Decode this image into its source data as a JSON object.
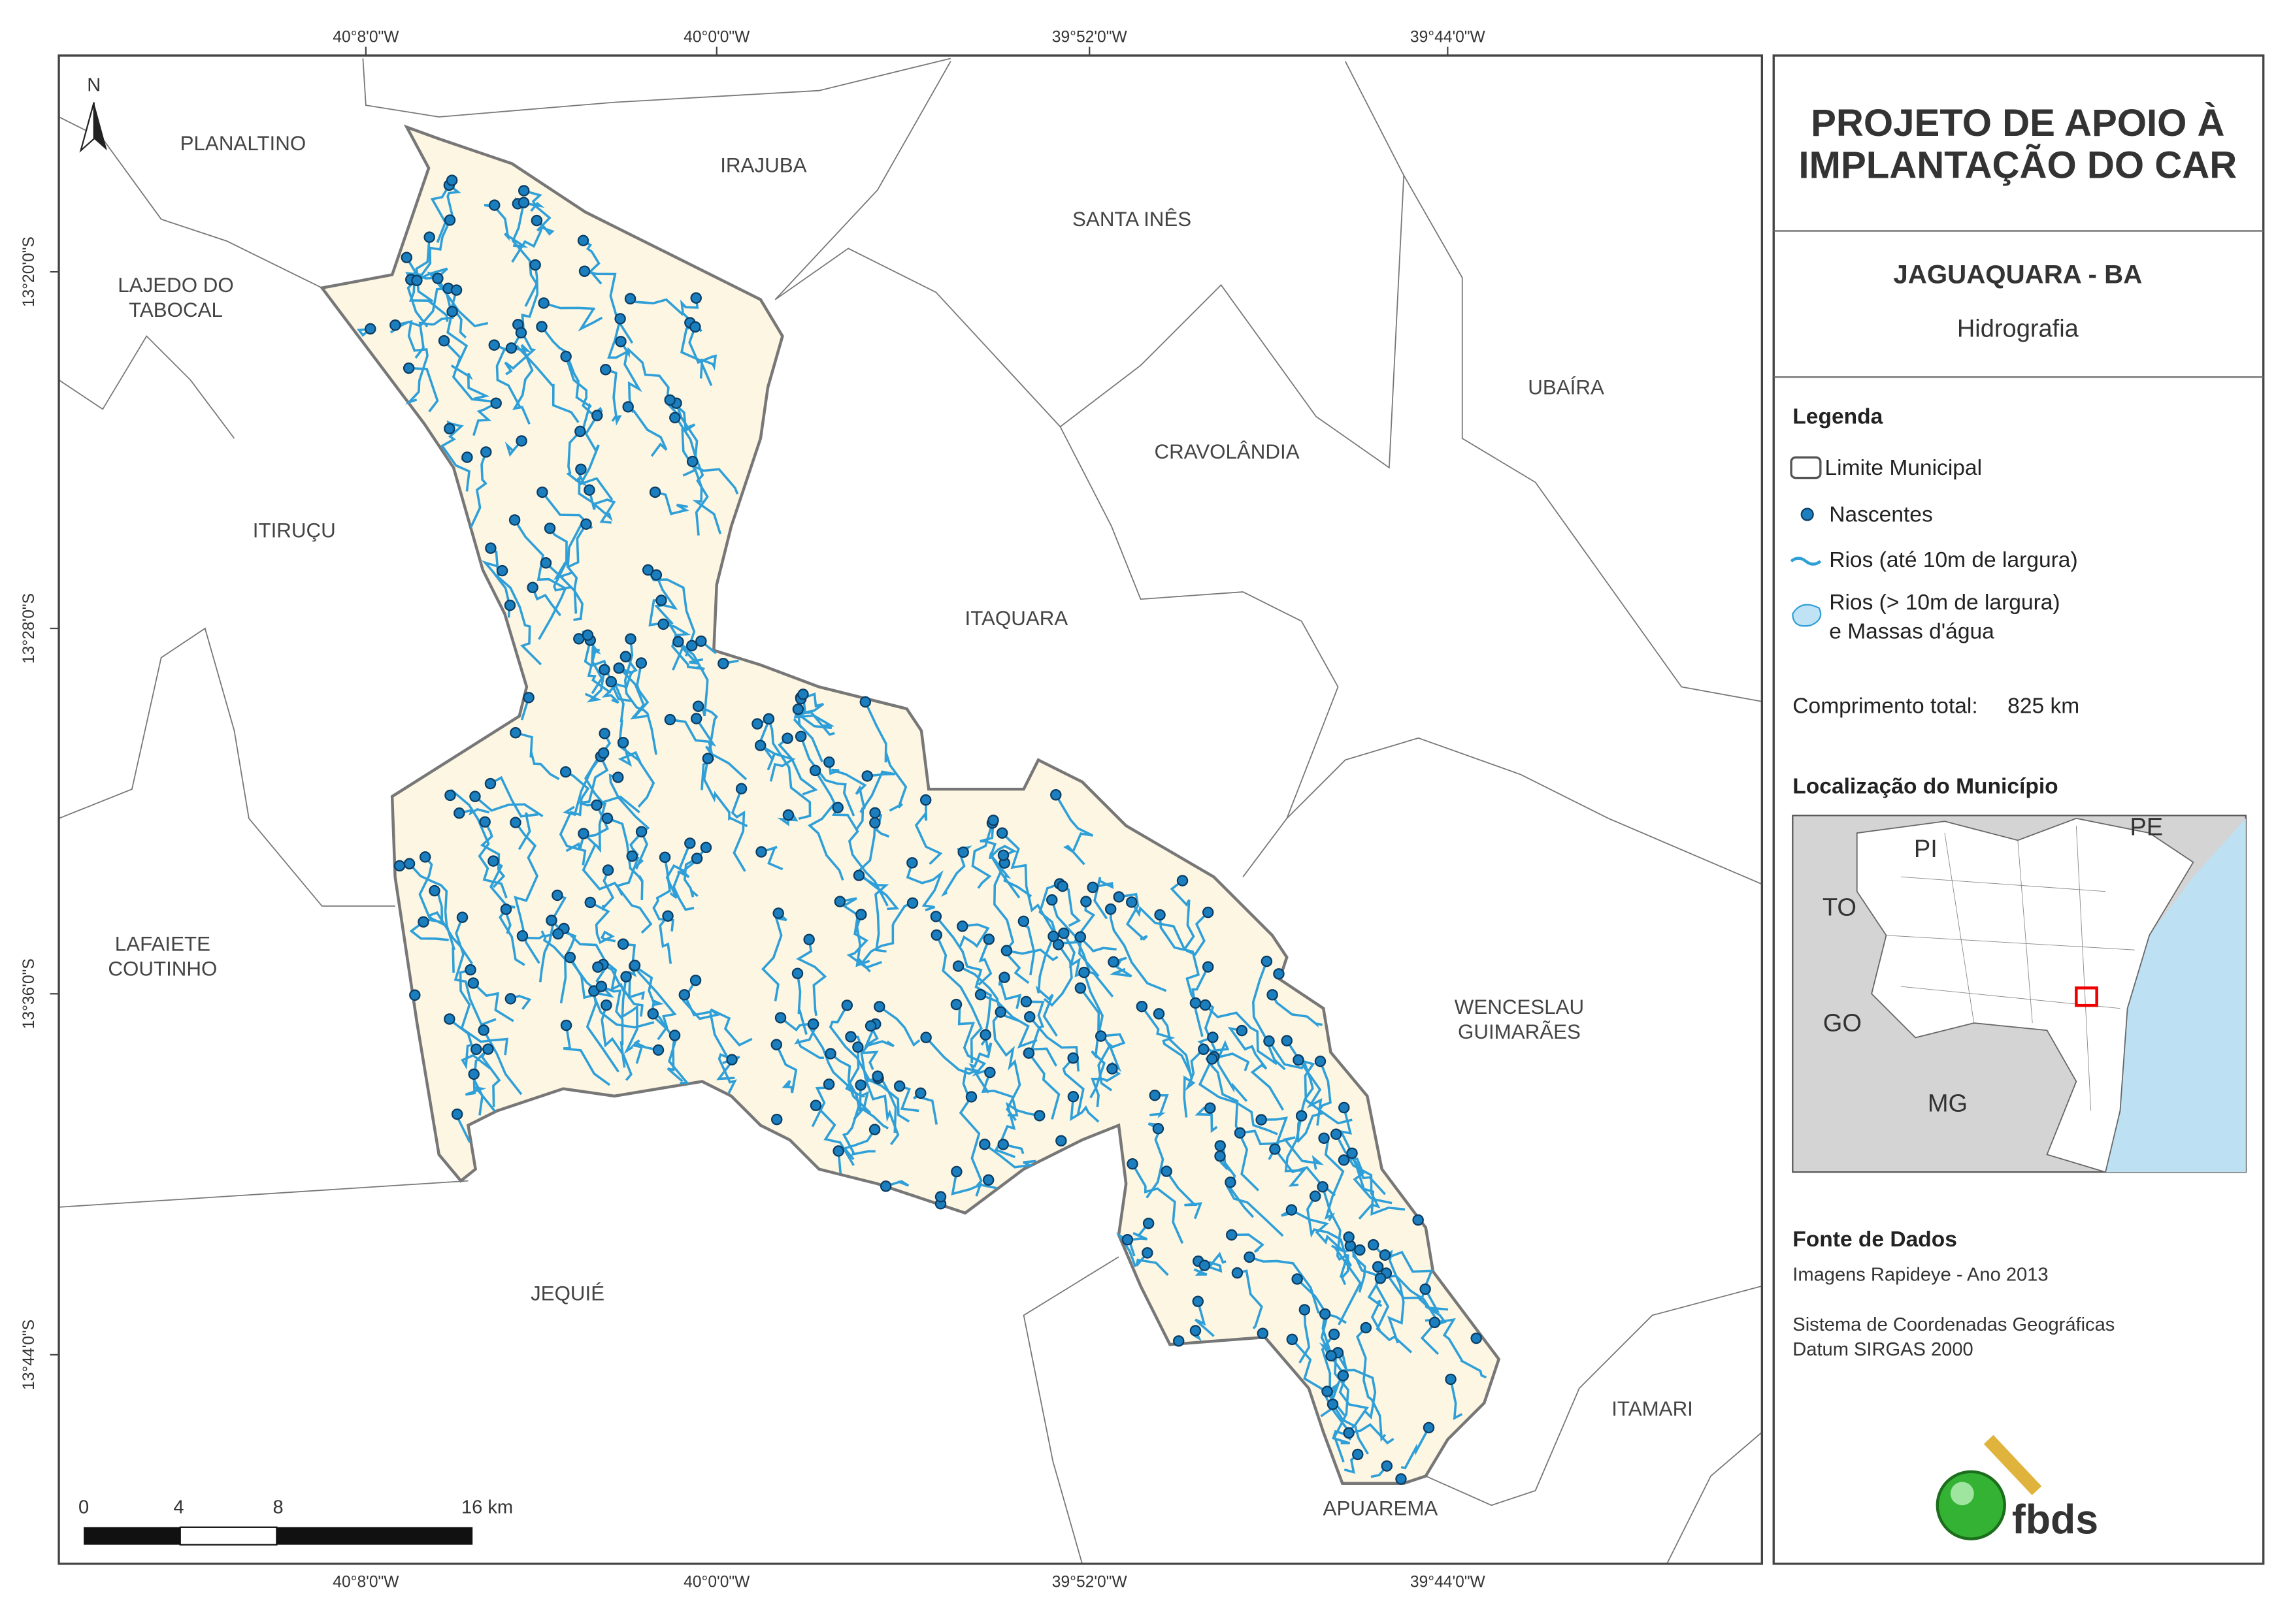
{
  "header": {
    "title_lines": [
      "PROJETO DE APOIO À",
      "IMPLANTAÇÃO DO CAR"
    ],
    "municipality": "JAGUAQUARA - BA",
    "theme": "Hidrografia"
  },
  "legend": {
    "title": "Legenda",
    "items": [
      [
        "Limite Municipal"
      ],
      [
        "Nascentes"
      ],
      [
        "Rios (até 10m de largura)"
      ],
      [
        "Rios (> 10m de largura)",
        "e Massas d'água"
      ]
    ],
    "total_label": "Comprimento total:",
    "total_value": "825 km"
  },
  "location": {
    "title": "Localização do Município",
    "states": [
      "PI",
      "PE",
      "TO",
      "GO",
      "MG"
    ]
  },
  "sources": {
    "title": "Fonte de Dados",
    "lines": [
      "Imagens Rapideye - Ano 2013",
      "Sistema de Coordenadas Geográficas",
      "Datum SIRGAS 2000"
    ]
  },
  "logo": "fbds",
  "map": {
    "north": "N",
    "neighbors": [
      [
        "PLANALTINO"
      ],
      [
        "IRAJUBA"
      ],
      [
        "SANTA INÊS"
      ],
      [
        "LAJEDO DO",
        "TABOCAL"
      ],
      [
        "UBAÍRA"
      ],
      [
        "CRAVOLÂNDIA"
      ],
      [
        "ITIRUÇU"
      ],
      [
        "ITAQUARA"
      ],
      [
        "LAFAIETE",
        "COUTINHO"
      ],
      [
        "WENCESLAU",
        "GUIMARÃES"
      ],
      [
        "JEQUIÉ"
      ],
      [
        "ITAMARI"
      ],
      [
        "APUAREMA"
      ]
    ],
    "lon_labels": [
      "40°8'0\"W",
      "40°0'0\"W",
      "39°52'0\"W",
      "39°44'0\"W"
    ],
    "lat_labels": [
      "13°20'0\"S",
      "13°28'0\"S",
      "13°36'0\"S",
      "13°44'0\"S"
    ],
    "scale": [
      "0",
      "4",
      "8",
      "16 km"
    ]
  }
}
